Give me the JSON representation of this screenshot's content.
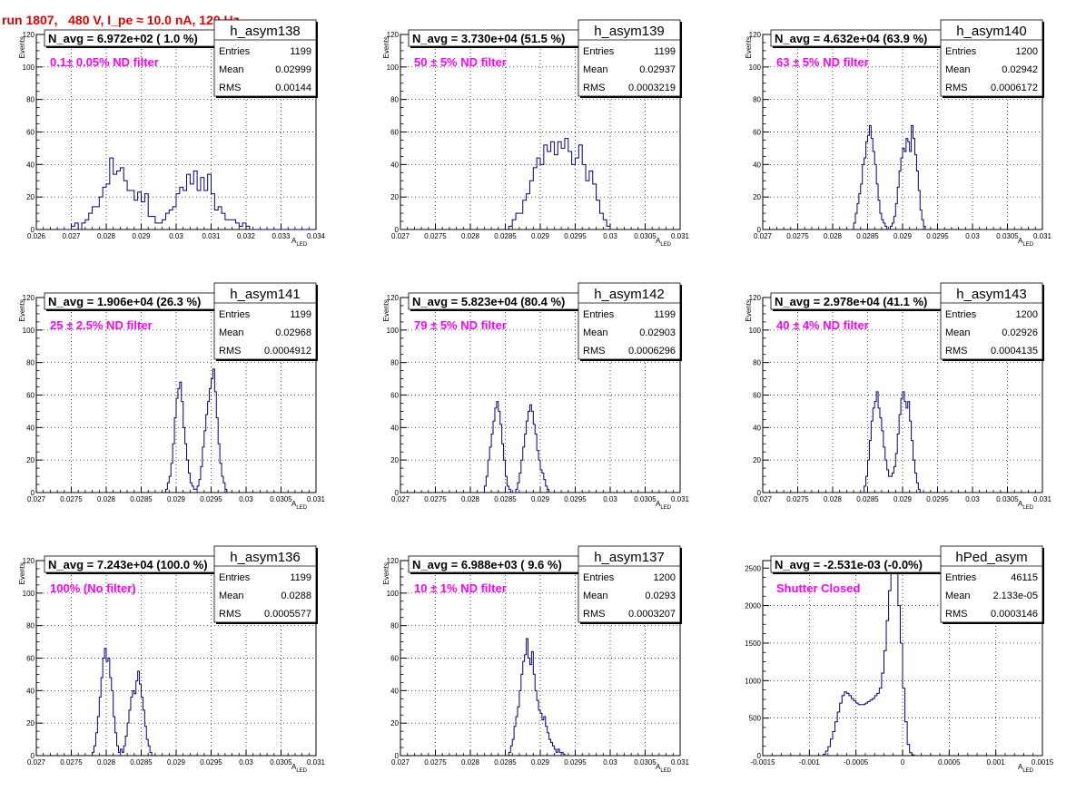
{
  "page": {
    "title": "run 1807,   480 V, I_pe ≈ 10.0 nA, 120 Hz",
    "colors": {
      "histogram": "#000080",
      "title": "#e00000",
      "annotation": "#ff00ff",
      "grid": "#000000"
    }
  },
  "chart_data": [
    {
      "type": "histogram",
      "name": "h_asym138",
      "navg": "N_avg = 6.972e+02 ( 1.0 %)",
      "annotation": "0.1± 0.05% ND filter",
      "stats": [
        {
          "label": "Entries",
          "value": "1199"
        },
        {
          "label": "Mean",
          "value": "0.02999"
        },
        {
          "label": "RMS",
          "value": "0.00144"
        }
      ],
      "xlabel": "A",
      "xlabel_sub": "LED",
      "ylabel": "Events",
      "xlim": [
        0.026,
        0.034
      ],
      "ylim": [
        0,
        120
      ],
      "xticks": [
        0.026,
        0.027,
        0.028,
        0.029,
        0.03,
        0.031,
        0.032,
        0.033,
        0.034
      ],
      "xtick_labels": [
        "0.026",
        "0.027",
        "0.028",
        "0.029",
        "0.03",
        "0.031",
        "0.032",
        "0.033",
        "0.034"
      ],
      "yticks": [
        0,
        20,
        40,
        60,
        80,
        100,
        120
      ],
      "ytick_labels": [
        "0",
        "20",
        "40",
        "60",
        "80",
        "100",
        "120"
      ],
      "bin_start": 0.0266,
      "bin_width": 0.0001,
      "counts": [
        0,
        0,
        0,
        0,
        2,
        4,
        0,
        4,
        6,
        10,
        14,
        14,
        20,
        26,
        28,
        44,
        34,
        36,
        38,
        30,
        24,
        24,
        18,
        23,
        17,
        22,
        8,
        8,
        4,
        4,
        6,
        10,
        12,
        14,
        22,
        26,
        24,
        34,
        28,
        36,
        24,
        32,
        24,
        34,
        22,
        12,
        14,
        10,
        6,
        6,
        6,
        4,
        2,
        4,
        2,
        0,
        0,
        0,
        0,
        0,
        0,
        0,
        0,
        0,
        0,
        0,
        0,
        0,
        0,
        0,
        0,
        0,
        0,
        0
      ]
    },
    {
      "type": "histogram",
      "name": "h_asym139",
      "navg": "N_avg = 3.730e+04 (51.5 %)",
      "annotation": "50 ± 5% ND filter",
      "stats": [
        {
          "label": "Entries",
          "value": "1199"
        },
        {
          "label": "Mean",
          "value": "0.02937"
        },
        {
          "label": "RMS",
          "value": "0.0003219"
        }
      ],
      "xlabel": "A",
      "xlabel_sub": "LED",
      "ylabel": "Events",
      "xlim": [
        0.027,
        0.031
      ],
      "ylim": [
        0,
        120
      ],
      "xticks": [
        0.027,
        0.0275,
        0.028,
        0.0285,
        0.029,
        0.0295,
        0.03,
        0.0305,
        0.031
      ],
      "xtick_labels": [
        "0.027",
        "0.0275",
        "0.028",
        "0.0285",
        "0.029",
        "0.0295",
        "0.03",
        "0.0305",
        "0.031"
      ],
      "yticks": [
        0,
        20,
        40,
        60,
        80,
        100,
        120
      ],
      "ytick_labels": [
        "0",
        "20",
        "40",
        "60",
        "80",
        "100",
        "120"
      ],
      "bin_start": 0.02855,
      "bin_width": 5e-05,
      "counts": [
        2,
        6,
        10,
        10,
        18,
        22,
        30,
        38,
        44,
        40,
        52,
        48,
        54,
        46,
        54,
        50,
        56,
        48,
        40,
        44,
        52,
        40,
        30,
        36,
        28,
        18,
        10,
        6,
        2
      ]
    },
    {
      "type": "histogram",
      "name": "h_asym140",
      "navg": "N_avg = 4.632e+04 (63.9 %)",
      "annotation": "63 ± 5% ND filter",
      "stats": [
        {
          "label": "Entries",
          "value": "1200"
        },
        {
          "label": "Mean",
          "value": "0.02942"
        },
        {
          "label": "RMS",
          "value": "0.0006172"
        }
      ],
      "xlabel": "A",
      "xlabel_sub": "LED",
      "ylabel": "Events",
      "xlim": [
        0.027,
        0.031
      ],
      "ylim": [
        0,
        120
      ],
      "xticks": [
        0.027,
        0.0275,
        0.028,
        0.0285,
        0.029,
        0.0295,
        0.03,
        0.0305,
        0.031
      ],
      "xtick_labels": [
        "0.027",
        "0.0275",
        "0.028",
        "0.0285",
        "0.029",
        "0.0295",
        "0.03",
        "0.0305",
        "0.031"
      ],
      "yticks": [
        0,
        20,
        40,
        60,
        80,
        100,
        120
      ],
      "ytick_labels": [
        "0",
        "20",
        "40",
        "60",
        "80",
        "100",
        "120"
      ],
      "bin_start": 0.0283,
      "bin_width": 2.5e-05,
      "counts": [
        4,
        10,
        16,
        22,
        28,
        40,
        44,
        54,
        58,
        64,
        56,
        48,
        40,
        28,
        18,
        10,
        6,
        4,
        2,
        0,
        0,
        2,
        4,
        8,
        16,
        26,
        36,
        44,
        50,
        48,
        56,
        54,
        48,
        64,
        56,
        46,
        36,
        24,
        12,
        6,
        2
      ]
    },
    {
      "type": "histogram",
      "name": "h_asym141",
      "navg": "N_avg = 1.906e+04 (26.3 %)",
      "annotation": "25 ± 2.5% ND filter",
      "stats": [
        {
          "label": "Entries",
          "value": "1199"
        },
        {
          "label": "Mean",
          "value": "0.02968"
        },
        {
          "label": "RMS",
          "value": "0.0004912"
        }
      ],
      "xlabel": "A",
      "xlabel_sub": "LED",
      "ylabel": "Events",
      "xlim": [
        0.027,
        0.031
      ],
      "ylim": [
        0,
        120
      ],
      "xticks": [
        0.027,
        0.0275,
        0.028,
        0.0285,
        0.029,
        0.0295,
        0.03,
        0.0305,
        0.031
      ],
      "xtick_labels": [
        "0.027",
        "0.0275",
        "0.028",
        "0.0285",
        "0.029",
        "0.0295",
        "0.03",
        "0.0305",
        "0.031"
      ],
      "yticks": [
        0,
        20,
        40,
        60,
        80,
        100,
        120
      ],
      "ytick_labels": [
        "0",
        "20",
        "40",
        "60",
        "80",
        "100",
        "120"
      ],
      "bin_start": 0.02885,
      "bin_width": 2.5e-05,
      "counts": [
        2,
        6,
        10,
        18,
        30,
        46,
        58,
        64,
        68,
        56,
        40,
        30,
        20,
        12,
        6,
        4,
        2,
        2,
        4,
        8,
        16,
        28,
        38,
        48,
        56,
        64,
        70,
        76,
        62,
        46,
        30,
        18,
        10,
        6,
        2
      ]
    },
    {
      "type": "histogram",
      "name": "h_asym142",
      "navg": "N_avg = 5.823e+04 (80.4 %)",
      "annotation": "79 ± 5% ND filter",
      "stats": [
        {
          "label": "Entries",
          "value": "1199"
        },
        {
          "label": "Mean",
          "value": "0.02903"
        },
        {
          "label": "RMS",
          "value": "0.0006296"
        }
      ],
      "xlabel": "A",
      "xlabel_sub": "LED",
      "ylabel": "Events",
      "xlim": [
        0.027,
        0.031
      ],
      "ylim": [
        0,
        120
      ],
      "xticks": [
        0.027,
        0.0275,
        0.028,
        0.0285,
        0.029,
        0.0295,
        0.03,
        0.0305,
        0.031
      ],
      "xtick_labels": [
        "0.027",
        "0.0275",
        "0.028",
        "0.0285",
        "0.029",
        "0.0295",
        "0.03",
        "0.0305",
        "0.031"
      ],
      "yticks": [
        0,
        20,
        40,
        60,
        80,
        100,
        120
      ],
      "ytick_labels": [
        "0",
        "20",
        "40",
        "60",
        "80",
        "100",
        "120"
      ],
      "bin_start": 0.0282,
      "bin_width": 2.5e-05,
      "counts": [
        4,
        10,
        20,
        28,
        36,
        44,
        52,
        56,
        50,
        42,
        30,
        20,
        10,
        4,
        2,
        0,
        0,
        0,
        2,
        6,
        12,
        20,
        28,
        36,
        44,
        50,
        54,
        50,
        42,
        36,
        26,
        20,
        14,
        12,
        8,
        4,
        2,
        0
      ]
    },
    {
      "type": "histogram",
      "name": "h_asym143",
      "navg": "N_avg = 2.978e+04 (41.1 %)",
      "annotation": "40 ± 4% ND filter",
      "stats": [
        {
          "label": "Entries",
          "value": "1200"
        },
        {
          "label": "Mean",
          "value": "0.02926"
        },
        {
          "label": "RMS",
          "value": "0.0004135"
        }
      ],
      "xlabel": "A",
      "xlabel_sub": "LED",
      "ylabel": "Events",
      "xlim": [
        0.027,
        0.031
      ],
      "ylim": [
        0,
        120
      ],
      "xticks": [
        0.027,
        0.0275,
        0.028,
        0.0285,
        0.029,
        0.0295,
        0.03,
        0.0305,
        0.031
      ],
      "xtick_labels": [
        "0.027",
        "0.0275",
        "0.028",
        "0.0285",
        "0.029",
        "0.0295",
        "0.03",
        "0.0305",
        "0.031"
      ],
      "yticks": [
        0,
        20,
        40,
        60,
        80,
        100,
        120
      ],
      "ytick_labels": [
        "0",
        "20",
        "40",
        "60",
        "80",
        "100",
        "120"
      ],
      "bin_start": 0.02845,
      "bin_width": 2.5e-05,
      "counts": [
        4,
        10,
        20,
        32,
        44,
        52,
        56,
        62,
        52,
        46,
        38,
        28,
        20,
        14,
        10,
        10,
        12,
        16,
        24,
        36,
        48,
        58,
        62,
        56,
        52,
        56,
        44,
        32,
        20,
        12,
        6,
        2
      ]
    },
    {
      "type": "histogram",
      "name": "h_asym136",
      "navg": "N_avg = 7.243e+04 (100.0 %)",
      "annotation": "100% (No filter)",
      "stats": [
        {
          "label": "Entries",
          "value": "1199"
        },
        {
          "label": "Mean",
          "value": "0.0288"
        },
        {
          "label": "RMS",
          "value": "0.0005577"
        }
      ],
      "xlabel": "A",
      "xlabel_sub": "LED",
      "ylabel": "Events",
      "xlim": [
        0.027,
        0.031
      ],
      "ylim": [
        0,
        120
      ],
      "xticks": [
        0.027,
        0.0275,
        0.028,
        0.0285,
        0.029,
        0.0295,
        0.03,
        0.0305,
        0.031
      ],
      "xtick_labels": [
        "0.027",
        "0.0275",
        "0.028",
        "0.0285",
        "0.029",
        "0.0295",
        "0.03",
        "0.0305",
        "0.031"
      ],
      "yticks": [
        0,
        20,
        40,
        60,
        80,
        100,
        120
      ],
      "ytick_labels": [
        "0",
        "20",
        "40",
        "60",
        "80",
        "100",
        "120"
      ],
      "bin_start": 0.0278,
      "bin_width": 2.5e-05,
      "counts": [
        2,
        6,
        14,
        24,
        36,
        48,
        60,
        66,
        58,
        60,
        48,
        40,
        24,
        14,
        6,
        2,
        4,
        2,
        6,
        12,
        20,
        28,
        36,
        40,
        38,
        46,
        52,
        44,
        36,
        28,
        18,
        10,
        6,
        2
      ]
    },
    {
      "type": "histogram",
      "name": "h_asym137",
      "navg": "N_avg = 6.988e+03 ( 9.6 %)",
      "annotation": "10 ± 1% ND filter",
      "stats": [
        {
          "label": "Entries",
          "value": "1200"
        },
        {
          "label": "Mean",
          "value": "0.0293"
        },
        {
          "label": "RMS",
          "value": "0.0003207"
        }
      ],
      "xlabel": "A",
      "xlabel_sub": "LED",
      "ylabel": "Events",
      "xlim": [
        0.027,
        0.031
      ],
      "ylim": [
        0,
        120
      ],
      "xticks": [
        0.027,
        0.0275,
        0.028,
        0.0285,
        0.029,
        0.0295,
        0.03,
        0.0305,
        0.031
      ],
      "xtick_labels": [
        "0.027",
        "0.0275",
        "0.028",
        "0.0285",
        "0.029",
        "0.0295",
        "0.03",
        "0.0305",
        "0.031"
      ],
      "yticks": [
        0,
        20,
        40,
        60,
        80,
        100,
        120
      ],
      "ytick_labels": [
        "0",
        "20",
        "40",
        "60",
        "80",
        "100",
        "120"
      ],
      "bin_start": 0.02855,
      "bin_width": 2.5e-05,
      "counts": [
        2,
        6,
        10,
        18,
        24,
        30,
        40,
        50,
        58,
        62,
        72,
        60,
        56,
        64,
        50,
        40,
        34,
        28,
        26,
        22,
        24,
        18,
        14,
        10,
        8,
        6,
        4,
        2,
        4,
        2,
        2,
        1
      ]
    },
    {
      "type": "histogram",
      "name": "hPed_asym",
      "navg": "N_avg = -2.531e-03 (-0.0%)",
      "annotation": "Shutter Closed",
      "stats": [
        {
          "label": "Entries",
          "value": "46115"
        },
        {
          "label": "Mean",
          "value": "2.133e-05"
        },
        {
          "label": "RMS",
          "value": "0.0003146"
        }
      ],
      "xlabel": "A",
      "xlabel_sub": "LED",
      "ylabel": "",
      "xlim": [
        -0.0015,
        0.0015
      ],
      "ylim": [
        0,
        2600
      ],
      "xticks": [
        -0.0015,
        -0.001,
        -0.0005,
        0,
        0.0005,
        0.001,
        0.0015
      ],
      "xtick_labels": [
        "-0.0015",
        "-0.001",
        "-0.0005",
        "0",
        "0.0005",
        "0.001",
        "0.0015"
      ],
      "yticks": [
        0,
        500,
        1000,
        1500,
        2000,
        2500
      ],
      "ytick_labels": [
        "0",
        "500",
        "1000",
        "1500",
        "2000",
        "2500"
      ],
      "bin_start": -0.00085,
      "bin_width": 2.5e-05,
      "counts": [
        20,
        60,
        120,
        220,
        320,
        450,
        580,
        700,
        800,
        850,
        830,
        800,
        760,
        730,
        700,
        680,
        680,
        680,
        700,
        720,
        740,
        760,
        800,
        830,
        900,
        1100,
        1400,
        1800,
        2200,
        2500,
        2520,
        2450,
        2000,
        1500,
        900,
        450,
        150,
        40,
        10
      ]
    }
  ]
}
